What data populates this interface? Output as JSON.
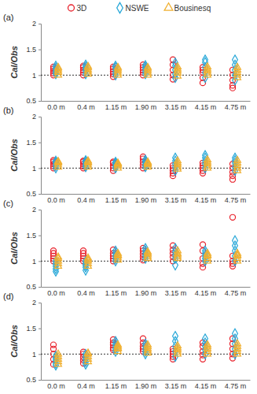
{
  "chart_data": [
    {
      "type": "scatter",
      "title": "(a)",
      "y_label": "Cal/Obs",
      "legend": "top",
      "categories": [
        "0.0 m",
        "0.4 m",
        "1.15 m",
        "1.90 m",
        "3.15 m",
        "4.15 m",
        "4.75 m"
      ],
      "ylim": [
        0.5,
        2
      ],
      "yticks": [
        0.5,
        1,
        1.5,
        2
      ],
      "reference": 1,
      "series": [
        {
          "name": "3D",
          "color": "#e8212b",
          "marker": "circle",
          "values": [
            [
              1.0,
              1.04,
              1.08,
              1.12,
              1.16
            ],
            [
              1.0,
              1.05,
              1.1,
              1.15,
              1.18
            ],
            [
              0.97,
              1.02,
              1.07,
              1.12,
              1.16
            ],
            [
              1.0,
              1.05,
              1.1,
              1.15,
              1.2
            ],
            [
              0.92,
              1.0,
              1.1,
              1.2,
              1.3
            ],
            [
              0.85,
              0.95,
              1.05,
              1.1,
              1.15
            ],
            [
              0.75,
              0.8,
              0.9,
              1.0,
              1.1
            ]
          ]
        },
        {
          "name": "NSWE",
          "color": "#29a8d8",
          "marker": "diamond",
          "values": [
            [
              1.02,
              1.06,
              1.1,
              1.14,
              1.18
            ],
            [
              1.02,
              1.08,
              1.12,
              1.16,
              1.2
            ],
            [
              1.0,
              1.05,
              1.1,
              1.15,
              1.18
            ],
            [
              1.02,
              1.07,
              1.12,
              1.16,
              1.19
            ],
            [
              0.95,
              1.02,
              1.1,
              1.18,
              1.24
            ],
            [
              0.95,
              1.05,
              1.15,
              1.25,
              1.3
            ],
            [
              0.9,
              1.0,
              1.1,
              1.2,
              1.3
            ]
          ]
        },
        {
          "name": "Bousinesq",
          "color": "#f0b030",
          "marker": "triangle",
          "values": [
            [
              1.0,
              1.05,
              1.08,
              1.12,
              1.15
            ],
            [
              1.02,
              1.06,
              1.1,
              1.14,
              1.17
            ],
            [
              1.0,
              1.04,
              1.08,
              1.12,
              1.15
            ],
            [
              1.0,
              1.04,
              1.08,
              1.12,
              1.15
            ],
            [
              0.98,
              1.04,
              1.08,
              1.12,
              1.16
            ],
            [
              1.0,
              1.04,
              1.08,
              1.12,
              1.16
            ],
            [
              0.95,
              1.0,
              1.05,
              1.1,
              1.15
            ]
          ]
        }
      ]
    },
    {
      "type": "scatter",
      "title": "(b)",
      "y_label": "Cal/Obs",
      "categories": [
        "0.0 m",
        "0.4 m",
        "1.15 m",
        "1.90 m",
        "3.15 m",
        "4.15 m",
        "4.75 m"
      ],
      "ylim": [
        0.5,
        2
      ],
      "yticks": [
        0.5,
        1,
        1.5,
        2
      ],
      "reference": 1,
      "series": [
        {
          "name": "3D",
          "color": "#e8212b",
          "marker": "circle",
          "values": [
            [
              1.0,
              1.04,
              1.08,
              1.12,
              1.15
            ],
            [
              1.0,
              1.04,
              1.08,
              1.12,
              1.14
            ],
            [
              0.95,
              1.0,
              1.05,
              1.1,
              1.12
            ],
            [
              1.0,
              1.06,
              1.12,
              1.18,
              1.22
            ],
            [
              0.85,
              0.9,
              0.95,
              1.0,
              1.05
            ],
            [
              0.9,
              0.95,
              1.0,
              1.05,
              1.1
            ],
            [
              0.78,
              0.85,
              0.92,
              1.0,
              1.08
            ]
          ]
        },
        {
          "name": "NSWE",
          "color": "#29a8d8",
          "marker": "diamond",
          "values": [
            [
              1.0,
              1.05,
              1.1,
              1.12,
              1.14
            ],
            [
              1.02,
              1.06,
              1.1,
              1.13,
              1.15
            ],
            [
              1.0,
              1.04,
              1.08,
              1.1,
              1.12
            ],
            [
              1.02,
              1.06,
              1.1,
              1.14,
              1.16
            ],
            [
              0.95,
              1.02,
              1.08,
              1.14,
              1.2
            ],
            [
              1.0,
              1.08,
              1.14,
              1.2,
              1.25
            ],
            [
              0.95,
              1.02,
              1.1,
              1.15,
              1.2
            ]
          ]
        },
        {
          "name": "Bousinesq",
          "color": "#f0b030",
          "marker": "triangle",
          "values": [
            [
              1.02,
              1.06,
              1.1,
              1.12,
              1.13
            ],
            [
              1.02,
              1.06,
              1.1,
              1.12,
              1.14
            ],
            [
              1.0,
              1.04,
              1.06,
              1.08,
              1.1
            ],
            [
              1.02,
              1.06,
              1.08,
              1.1,
              1.12
            ],
            [
              0.98,
              1.02,
              1.06,
              1.1,
              1.14
            ],
            [
              1.0,
              1.04,
              1.08,
              1.12,
              1.16
            ],
            [
              0.95,
              1.0,
              1.05,
              1.1,
              1.15
            ]
          ]
        }
      ]
    },
    {
      "type": "scatter",
      "title": "(c)",
      "y_label": "Cal/Obs",
      "categories": [
        "0.0 m",
        "0.4 m",
        "1.15 m",
        "1.90 m",
        "3.15 m",
        "4.15 m",
        "4.75 m"
      ],
      "ylim": [
        0.5,
        2
      ],
      "yticks": [
        0.5,
        1,
        1.5,
        2
      ],
      "reference": 1,
      "series": [
        {
          "name": "3D",
          "color": "#e8212b",
          "marker": "circle",
          "values": [
            [
              1.0,
              1.05,
              1.1,
              1.15,
              1.2
            ],
            [
              1.0,
              1.05,
              1.1,
              1.15,
              1.2
            ],
            [
              1.0,
              1.05,
              1.1,
              1.15,
              1.22
            ],
            [
              1.02,
              1.08,
              1.14,
              1.2,
              1.25
            ],
            [
              1.0,
              1.08,
              1.15,
              1.22,
              1.3
            ],
            [
              0.88,
              0.95,
              1.05,
              1.2,
              1.32
            ],
            [
              0.9,
              0.95,
              1.0,
              1.1,
              1.85
            ]
          ]
        },
        {
          "name": "NSWE",
          "color": "#29a8d8",
          "marker": "diamond",
          "values": [
            [
              0.8,
              0.85,
              0.9,
              0.95,
              1.0
            ],
            [
              0.82,
              0.88,
              0.92,
              0.96,
              1.0
            ],
            [
              1.0,
              1.05,
              1.1,
              1.15,
              1.2
            ],
            [
              1.05,
              1.1,
              1.15,
              1.2,
              1.25
            ],
            [
              0.92,
              1.05,
              1.12,
              1.18,
              1.25
            ],
            [
              1.0,
              1.05,
              1.1,
              1.15,
              1.2
            ],
            [
              1.0,
              1.1,
              1.2,
              1.3,
              1.4
            ]
          ]
        },
        {
          "name": "Bousinesq",
          "color": "#f0b030",
          "marker": "triangle",
          "values": [
            [
              0.9,
              0.95,
              1.0,
              1.05,
              1.08
            ],
            [
              0.9,
              0.95,
              1.0,
              1.03,
              1.06
            ],
            [
              1.02,
              1.06,
              1.1,
              1.12,
              1.15
            ],
            [
              1.05,
              1.08,
              1.12,
              1.15,
              1.18
            ],
            [
              1.05,
              1.08,
              1.12,
              1.15,
              1.2
            ],
            [
              1.0,
              1.05,
              1.1,
              1.12,
              1.15
            ],
            [
              1.0,
              1.05,
              1.1,
              1.12,
              1.15
            ]
          ]
        }
      ]
    },
    {
      "type": "scatter",
      "title": "(d)",
      "y_label": "Cal/Obs",
      "categories": [
        "0.0 m",
        "0.4 m",
        "1.15 m",
        "1.90 m",
        "3.15 m",
        "4.15 m",
        "4.75 m"
      ],
      "ylim": [
        0.5,
        2
      ],
      "yticks": [
        0.5,
        1,
        1.5,
        2
      ],
      "reference": 1,
      "series": [
        {
          "name": "3D",
          "color": "#e8212b",
          "marker": "circle",
          "values": [
            [
              0.8,
              0.9,
              1.0,
              1.1,
              1.18
            ],
            [
              0.82,
              0.88,
              0.94,
              1.0,
              1.04
            ],
            [
              1.08,
              1.12,
              1.18,
              1.22,
              1.28
            ],
            [
              1.05,
              1.1,
              1.15,
              1.22,
              1.3
            ],
            [
              0.9,
              0.95,
              1.0,
              1.05,
              1.1
            ],
            [
              0.9,
              0.98,
              1.05,
              1.15,
              1.22
            ],
            [
              0.92,
              1.0,
              1.1,
              1.2,
              1.3
            ]
          ]
        },
        {
          "name": "NSWE",
          "color": "#29a8d8",
          "marker": "diamond",
          "values": [
            [
              0.78,
              0.82,
              0.88,
              0.92,
              0.96
            ],
            [
              0.8,
              0.85,
              0.9,
              0.95,
              1.0
            ],
            [
              1.05,
              1.1,
              1.15,
              1.2,
              1.25
            ],
            [
              1.0,
              1.05,
              1.1,
              1.15,
              1.2
            ],
            [
              0.95,
              1.05,
              1.15,
              1.25,
              1.35
            ],
            [
              1.0,
              1.08,
              1.15,
              1.22,
              1.3
            ],
            [
              1.0,
              1.1,
              1.2,
              1.3,
              1.4
            ]
          ]
        },
        {
          "name": "Bousinesq",
          "color": "#f0b030",
          "marker": "triangle",
          "values": [
            [
              0.8,
              0.85,
              0.9,
              0.95,
              1.0
            ],
            [
              0.85,
              0.9,
              0.95,
              1.0,
              1.02
            ],
            [
              1.05,
              1.1,
              1.12,
              1.15,
              1.18
            ],
            [
              1.02,
              1.06,
              1.1,
              1.14,
              1.18
            ],
            [
              1.0,
              1.04,
              1.08,
              1.12,
              1.16
            ],
            [
              1.0,
              1.05,
              1.1,
              1.14,
              1.18
            ],
            [
              1.0,
              1.05,
              1.1,
              1.15,
              1.2
            ]
          ]
        }
      ]
    }
  ]
}
